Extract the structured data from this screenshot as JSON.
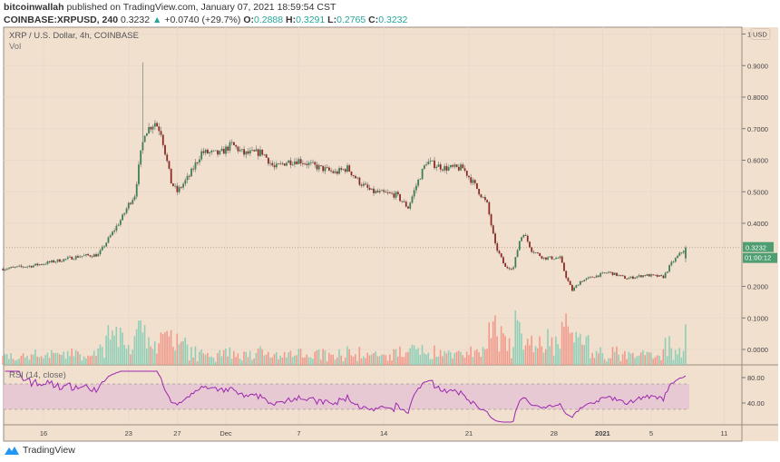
{
  "header": {
    "author": "bitcoinwallah",
    "published_text": "published on TradingView.com, January 07, 2021 18:59:54 CST",
    "symbol": "COINBASE:XRPUSD, 240",
    "last": "0.3232",
    "change": "+0.0740 (+29.7%)",
    "o_label": "O:",
    "o": "0.2888",
    "h_label": "H:",
    "h": "0.3291",
    "l_label": "L:",
    "l": "0.2765",
    "c_label": "C:",
    "c": "0.3232"
  },
  "legend": {
    "title": "XRP / U.S. Dollar, 4h, COINBASE",
    "vol": "Vol",
    "rsi": "RSI (14, close)"
  },
  "footer": {
    "brand": "TradingView"
  },
  "colors": {
    "background": "#f2e0cf",
    "up_candle": "#3f7f55",
    "down_candle": "#8c2b24",
    "up_volume": "#8fcfb8",
    "down_volume": "#f19a8c",
    "rsi_line": "#9c27b0",
    "rsi_band": "#e7c9d3",
    "price_label": "#4f9e72"
  },
  "chart_data": {
    "type": "candlestick",
    "price_axis": {
      "currency": "USD",
      "ticks": [
        "1",
        "0.9000",
        "0.8000",
        "0.7000",
        "0.6000",
        "0.5000",
        "0.4000",
        "0.2000",
        "0.1000",
        "0.0000"
      ],
      "ylim": [
        -0.05,
        1.0
      ]
    },
    "time_axis": {
      "ticks": [
        {
          "label": "16",
          "date": "2020-11-16"
        },
        {
          "label": "23",
          "date": "2020-11-23"
        },
        {
          "label": "27",
          "date": "2020-11-27"
        },
        {
          "label": "Dec",
          "date": "2020-12-01"
        },
        {
          "label": "7",
          "date": "2020-12-07"
        },
        {
          "label": "14",
          "date": "2020-12-14"
        },
        {
          "label": "21",
          "date": "2020-12-21"
        },
        {
          "label": "28",
          "date": "2020-12-28"
        },
        {
          "label": "2021",
          "date": "2021-01-01"
        },
        {
          "label": "5",
          "date": "2021-01-05"
        },
        {
          "label": "11",
          "date": "2021-01-11"
        }
      ]
    },
    "last_price": "0.3232",
    "countdown": "01:00:12",
    "spike_high": {
      "date": "2020-11-24 04:00",
      "price": 0.91
    },
    "approx_closes": [
      [
        "2020-11-12 16:00",
        0.256
      ],
      [
        "2020-11-15 00:00",
        0.265
      ],
      [
        "2020-11-17 00:00",
        0.28
      ],
      [
        "2020-11-19 00:00",
        0.296
      ],
      [
        "2020-11-20 12:00",
        0.3
      ],
      [
        "2020-11-21 12:00",
        0.36
      ],
      [
        "2020-11-22 12:00",
        0.42
      ],
      [
        "2020-11-23 00:00",
        0.46
      ],
      [
        "2020-11-23 12:00",
        0.49
      ],
      [
        "2020-11-24 00:00",
        0.62
      ],
      [
        "2020-11-24 08:00",
        0.69
      ],
      [
        "2020-11-25 04:00",
        0.72
      ],
      [
        "2020-11-25 16:00",
        0.69
      ],
      [
        "2020-11-26 12:00",
        0.53
      ],
      [
        "2020-11-27 00:00",
        0.5
      ],
      [
        "2020-11-28 00:00",
        0.55
      ],
      [
        "2020-11-29 00:00",
        0.625
      ],
      [
        "2020-11-30 12:00",
        0.62
      ],
      [
        "2020-12-01 12:00",
        0.65
      ],
      [
        "2020-12-02 12:00",
        0.62
      ],
      [
        "2020-12-04 00:00",
        0.625
      ],
      [
        "2020-12-05 00:00",
        0.575
      ],
      [
        "2020-12-06 00:00",
        0.595
      ],
      [
        "2020-12-07 00:00",
        0.6
      ],
      [
        "2020-12-08 00:00",
        0.585
      ],
      [
        "2020-12-10 00:00",
        0.56
      ],
      [
        "2020-12-11 00:00",
        0.575
      ],
      [
        "2020-12-12 00:00",
        0.53
      ],
      [
        "2020-12-13 00:00",
        0.5
      ],
      [
        "2020-12-15 00:00",
        0.49
      ],
      [
        "2020-12-16 00:00",
        0.45
      ],
      [
        "2020-12-16 16:00",
        0.52
      ],
      [
        "2020-12-17 12:00",
        0.595
      ],
      [
        "2020-12-19 00:00",
        0.575
      ],
      [
        "2020-12-20 12:00",
        0.575
      ],
      [
        "2020-12-21 12:00",
        0.52
      ],
      [
        "2020-12-22 12:00",
        0.46
      ],
      [
        "2020-12-23 04:00",
        0.33
      ],
      [
        "2020-12-24 00:00",
        0.26
      ],
      [
        "2020-12-24 16:00",
        0.26
      ],
      [
        "2020-12-25 04:00",
        0.345
      ],
      [
        "2020-12-25 12:00",
        0.37
      ],
      [
        "2020-12-26 04:00",
        0.315
      ],
      [
        "2020-12-27 04:00",
        0.29
      ],
      [
        "2020-12-28 12:00",
        0.29
      ],
      [
        "2020-12-29 00:00",
        0.23
      ],
      [
        "2020-12-29 12:00",
        0.187
      ],
      [
        "2020-12-30 04:00",
        0.216
      ],
      [
        "2020-12-31 04:00",
        0.23
      ],
      [
        "2021-01-01 12:00",
        0.245
      ],
      [
        "2021-01-03 00:00",
        0.225
      ],
      [
        "2021-01-04 12:00",
        0.236
      ],
      [
        "2021-01-06 00:00",
        0.23
      ],
      [
        "2021-01-06 16:00",
        0.273
      ],
      [
        "2021-01-07 20:00",
        0.3232
      ]
    ],
    "rsi": {
      "period": 14,
      "ticks": [
        "80.00",
        "40.00"
      ],
      "band": [
        30,
        70
      ]
    }
  }
}
